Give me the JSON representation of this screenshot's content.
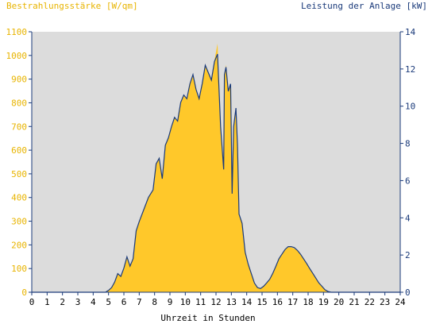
{
  "chart_data": {
    "type": "area",
    "title_left": "Bestrahlungsstärke [W/qm]",
    "title_right": "Leistung der Anlage [kW]",
    "xlabel": "Uhrzeit in Stunden",
    "xlim": [
      0,
      24
    ],
    "x_ticks": [
      0,
      1,
      2,
      3,
      4,
      5,
      6,
      7,
      8,
      9,
      10,
      11,
      12,
      13,
      14,
      15,
      16,
      17,
      18,
      19,
      20,
      21,
      22,
      23,
      24
    ],
    "ylim_left": [
      0,
      1100
    ],
    "y_ticks_left": [
      0,
      100,
      200,
      300,
      400,
      500,
      600,
      700,
      800,
      900,
      1000,
      1100
    ],
    "ylim_right": [
      0,
      14
    ],
    "y_ticks_right": [
      0,
      2,
      4,
      6,
      8,
      10,
      12,
      14
    ],
    "grid": false,
    "colors": {
      "irradiance": "#ffc82a",
      "power": "#1a3a7a",
      "plot_bg": "#dcdcdc",
      "axis": "#1a3a7a",
      "left_text": "#e8b400"
    },
    "series": [
      {
        "axis": "left",
        "x": [
          0,
          4.8,
          5.0,
          5.2,
          5.4,
          5.6,
          5.8,
          6.0,
          6.2,
          6.4,
          6.6,
          6.8,
          7.0,
          7.3,
          7.6,
          7.9,
          8.1,
          8.3,
          8.5,
          8.7,
          8.9,
          9.1,
          9.3,
          9.5,
          9.7,
          9.9,
          10.1,
          10.3,
          10.5,
          10.7,
          10.9,
          11.1,
          11.3,
          11.5,
          11.7,
          11.9,
          12.1,
          12.3,
          12.5,
          12.55,
          12.65,
          12.8,
          12.95,
          13.05,
          13.15,
          13.3,
          13.4,
          13.5,
          13.7,
          13.9,
          14.1,
          14.3,
          14.5,
          14.7,
          14.9,
          15.1,
          15.3,
          15.5,
          15.7,
          15.9,
          16.1,
          16.3,
          16.5,
          16.7,
          16.9,
          17.1,
          17.3,
          17.5,
          17.7,
          17.9,
          18.1,
          18.3,
          18.5,
          18.7,
          18.9,
          19.1,
          19.3,
          19.5,
          19.7,
          19.9,
          20.1,
          20.3,
          24
        ],
        "y": [
          0,
          0,
          8,
          20,
          45,
          80,
          65,
          100,
          150,
          110,
          140,
          260,
          300,
          350,
          400,
          430,
          540,
          570,
          480,
          620,
          650,
          700,
          740,
          720,
          800,
          830,
          820,
          880,
          920,
          860,
          820,
          880,
          960,
          930,
          900,
          980,
          1050,
          700,
          520,
          920,
          960,
          850,
          880,
          420,
          700,
          760,
          620,
          330,
          290,
          170,
          120,
          80,
          40,
          20,
          15,
          25,
          40,
          55,
          80,
          110,
          140,
          160,
          180,
          190,
          190,
          185,
          175,
          160,
          140,
          120,
          100,
          80,
          60,
          40,
          25,
          10,
          3,
          0,
          0,
          0,
          0,
          0,
          0
        ]
      },
      {
        "axis": "right",
        "x": [
          0,
          4.8,
          5.0,
          5.2,
          5.4,
          5.6,
          5.8,
          6.0,
          6.2,
          6.4,
          6.6,
          6.8,
          7.0,
          7.3,
          7.6,
          7.9,
          8.1,
          8.3,
          8.5,
          8.7,
          8.9,
          9.1,
          9.3,
          9.5,
          9.7,
          9.9,
          10.1,
          10.3,
          10.5,
          10.7,
          10.9,
          11.1,
          11.3,
          11.5,
          11.7,
          11.9,
          12.1,
          12.3,
          12.5,
          12.55,
          12.65,
          12.8,
          12.95,
          13.05,
          13.15,
          13.3,
          13.4,
          13.5,
          13.7,
          13.9,
          14.1,
          14.3,
          14.5,
          14.7,
          14.9,
          15.1,
          15.3,
          15.5,
          15.7,
          15.9,
          16.1,
          16.3,
          16.5,
          16.7,
          16.9,
          17.1,
          17.3,
          17.5,
          17.7,
          17.9,
          18.1,
          18.3,
          18.5,
          18.7,
          18.9,
          19.1,
          19.3,
          19.5,
          19.7,
          19.9,
          20.1,
          20.3,
          24
        ],
        "y": [
          0,
          0,
          0.1,
          0.25,
          0.55,
          1.0,
          0.85,
          1.3,
          1.9,
          1.4,
          1.8,
          3.3,
          3.8,
          4.45,
          5.1,
          5.5,
          6.9,
          7.2,
          6.1,
          7.9,
          8.3,
          8.9,
          9.4,
          9.2,
          10.2,
          10.6,
          10.4,
          11.2,
          11.7,
          10.9,
          10.4,
          11.2,
          12.2,
          11.8,
          11.4,
          12.4,
          12.8,
          8.9,
          6.6,
          11.7,
          12.1,
          10.8,
          11.2,
          5.3,
          8.9,
          9.9,
          7.9,
          4.2,
          3.7,
          2.15,
          1.5,
          1.0,
          0.5,
          0.25,
          0.2,
          0.32,
          0.5,
          0.7,
          1.02,
          1.4,
          1.8,
          2.05,
          2.3,
          2.45,
          2.45,
          2.4,
          2.25,
          2.05,
          1.8,
          1.55,
          1.28,
          1.02,
          0.76,
          0.5,
          0.32,
          0.13,
          0.04,
          0,
          0,
          0,
          0,
          0,
          0
        ]
      }
    ]
  }
}
